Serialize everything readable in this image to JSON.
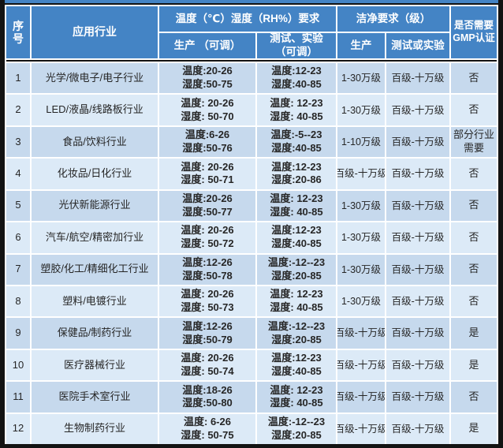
{
  "colors": {
    "header_blue": "#4484c5",
    "row_odd": "#c6d9ed",
    "row_even": "#dceaf7",
    "border_black": "#131313",
    "header_text": "#ffffff",
    "body_text": "#262626"
  },
  "table": {
    "header": {
      "seq": "序号",
      "industry": "应用行业",
      "temp_group": "温度（℃）湿度（RH%）要求",
      "prod_adj": "生产 （可调）",
      "test_adj_line1": "测试、实验",
      "test_adj_line2": "（可调）",
      "clean_group": "洁净要求（级）",
      "clean_prod": "生产",
      "clean_test": "测试或实验",
      "gmp_line1": "是否需要",
      "gmp_line2": "GMP认证"
    },
    "rows": [
      {
        "no": "1",
        "industry": "光学/微电子/电子行业",
        "prod_temp": "温度:20-26",
        "prod_hum": "湿度:50-75",
        "test_temp": "温度:12-23",
        "test_hum": "湿度:40-85",
        "clean_prod": "1-30万级",
        "clean_test": "百级-十万级",
        "gmp": "否"
      },
      {
        "no": "2",
        "industry": "LED/液晶/线路板行业",
        "prod_temp": "温度: 20-26",
        "prod_hum": "湿度: 50-70",
        "test_temp": "温度: 12-23",
        "test_hum": "湿度: 40-85",
        "clean_prod": "1-30万级",
        "clean_test": "百级-十万级",
        "gmp": "否"
      },
      {
        "no": "3",
        "industry": "食品/饮料行业",
        "prod_temp": "温度:6-26",
        "prod_hum": "湿度:50-76",
        "test_temp": "温度:-5--23",
        "test_hum": "湿度:40-85",
        "clean_prod": "1-10万级",
        "clean_test": "百级-十万级",
        "gmp": "部分行业需要"
      },
      {
        "no": "4",
        "industry": "化妆品/日化行业",
        "prod_temp": "温度: 20-26",
        "prod_hum": "湿度: 50-71",
        "test_temp": "温度:12-23",
        "test_hum": "湿度:20-86",
        "clean_prod": "百级-十万级",
        "clean_test": "百级-十万级",
        "gmp": "否"
      },
      {
        "no": "5",
        "industry": "光伏新能源行业",
        "prod_temp": "温度:20-26",
        "prod_hum": "湿度:50-77",
        "test_temp": "温度: 12-23",
        "test_hum": "湿度: 40-85",
        "clean_prod": "1-30万级",
        "clean_test": "百级-十万级",
        "gmp": "否"
      },
      {
        "no": "6",
        "industry": "汽车/航空/精密加行业",
        "prod_temp": "温度: 20-26",
        "prod_hum": "湿度: 50-72",
        "test_temp": "温度:12-23",
        "test_hum": "湿度:40-85",
        "clean_prod": "1-30万级",
        "clean_test": "百级-十万级",
        "gmp": "否"
      },
      {
        "no": "7",
        "industry": "塑胶/化工/精细化工行业",
        "prod_temp": "温度:12-26",
        "prod_hum": "湿度:50-78",
        "test_temp": "温度:-12--23",
        "test_hum": "湿度:20-85",
        "clean_prod": "1-30万级",
        "clean_test": "百级-十万级",
        "gmp": "否"
      },
      {
        "no": "8",
        "industry": "塑料/电镀行业",
        "prod_temp": "温度: 20-26",
        "prod_hum": "湿度: 50-73",
        "test_temp": "温度: 12-23",
        "test_hum": "湿度: 40-85",
        "clean_prod": "1-30万级",
        "clean_test": "百级-十万级",
        "gmp": "否"
      },
      {
        "no": "9",
        "industry": "保健品/制药行业",
        "prod_temp": "温度:12-26",
        "prod_hum": "湿度:50-79",
        "test_temp": "温度:-12--23",
        "test_hum": "湿度:20-85",
        "clean_prod": "百级-十万级",
        "clean_test": "百级-十万级",
        "gmp": "是"
      },
      {
        "no": "10",
        "industry": "医疗器械行业",
        "prod_temp": "温度: 20-26",
        "prod_hum": "湿度: 50-74",
        "test_temp": "温度:12-23",
        "test_hum": "湿度:40-85",
        "clean_prod": "百级-十万级",
        "clean_test": "百级-十万级",
        "gmp": "是"
      },
      {
        "no": "11",
        "industry": "医院手术室行业",
        "prod_temp": "温度:18-26",
        "prod_hum": "湿度:50-80",
        "test_temp": "温度: 12-23",
        "test_hum": "湿度: 40-85",
        "clean_prod": "百级-十万级",
        "clean_test": "百级-十万级",
        "gmp": "否"
      },
      {
        "no": "12",
        "industry": "生物制药行业",
        "prod_temp": "温度: 6-26",
        "prod_hum": "湿度: 50-75",
        "test_temp": "温度:-12--23",
        "test_hum": "湿度:20-85",
        "clean_prod": "百级-十万级",
        "clean_test": "百级-十万级",
        "gmp": "是"
      }
    ]
  }
}
